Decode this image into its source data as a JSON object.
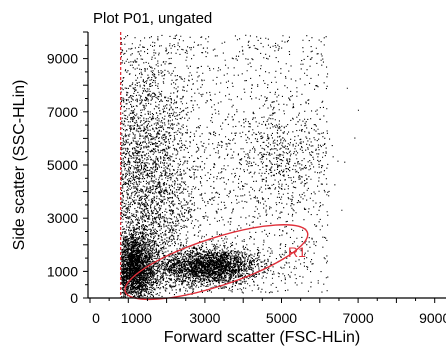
{
  "chart_data": {
    "type": "scatter",
    "title": "Plot P01, ungated",
    "xlabel": "Forward scatter (FSC-HLin)",
    "ylabel": "Side scatter (SSC-HLin)",
    "xlim": [
      0,
      10000
    ],
    "ylim": [
      0,
      10000
    ],
    "x_ticks": [
      0,
      1000,
      3000,
      5000,
      7000,
      9000
    ],
    "x_tick_labels": [
      "0",
      "1000",
      "3000",
      "5000",
      "7000",
      "9000"
    ],
    "y_ticks": [
      0,
      1000,
      3000,
      5000,
      7000,
      9000
    ],
    "y_tick_labels": [
      "0",
      "1000",
      "3000",
      "5000",
      "7000",
      "9000"
    ],
    "threshold_x": 800,
    "threshold_color": "#e0303a",
    "point_color": "#000000",
    "gate": {
      "label": "R1",
      "shape": "ellipse",
      "center": [
        3300,
        1350
      ],
      "radius_x": 2500,
      "radius_y": 900,
      "color": "#e0303a"
    },
    "populations": [
      {
        "name": "",
        "x_mean": 3100,
        "y_mean": 1200,
        "x_sd": 650,
        "y_sd": 330,
        "count": 2600
      },
      {
        "name": "",
        "x_mean": 1150,
        "y_mean": 1100,
        "x_sd": 260,
        "y_sd": 650,
        "count": 2600
      },
      {
        "name": "",
        "x_mean": 1500,
        "y_mean": 4200,
        "x_sd": 650,
        "y_sd": 2300,
        "count": 2600
      },
      {
        "name": "",
        "x_mean": 4900,
        "y_mean": 5200,
        "x_sd": 650,
        "y_sd": 1100,
        "count": 500
      },
      {
        "name": "",
        "x_min": 800,
        "x_max": 6200,
        "y_min": 200,
        "y_max": 9900,
        "count": 2000
      }
    ]
  }
}
